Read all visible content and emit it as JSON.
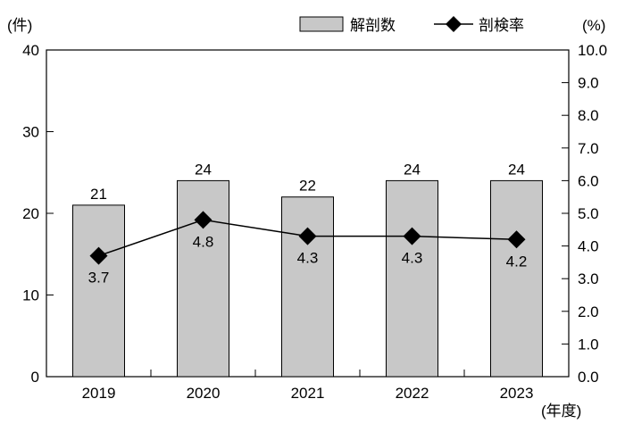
{
  "chart_data": {
    "type": "bar",
    "categories": [
      "2019",
      "2020",
      "2021",
      "2022",
      "2023"
    ],
    "series": [
      {
        "name": "解剖数",
        "type": "bar",
        "axis": "left",
        "values": [
          21,
          24,
          22,
          24,
          24
        ],
        "color": "#c8c8c8"
      },
      {
        "name": "剖検率",
        "type": "line",
        "axis": "right",
        "marker": "diamond",
        "values": [
          3.7,
          4.8,
          4.3,
          4.3,
          4.2
        ],
        "color": "#000000"
      }
    ],
    "value_labels": {
      "bars": [
        "21",
        "24",
        "22",
        "24",
        "24"
      ],
      "line": [
        "3.7",
        "4.8",
        "4.3",
        "4.3",
        "4.2"
      ]
    },
    "left_axis": {
      "unit_label": "(件)",
      "min": 0,
      "max": 40,
      "ticks": [
        "0",
        "10",
        "20",
        "30",
        "40"
      ]
    },
    "right_axis": {
      "unit_label": "(%)",
      "min": 0,
      "max": 10,
      "ticks": [
        "0.0",
        "1.0",
        "2.0",
        "3.0",
        "4.0",
        "5.0",
        "6.0",
        "7.0",
        "8.0",
        "9.0",
        "10.0"
      ]
    },
    "x_unit_label": "(年度)",
    "legend_position": "top-right",
    "grid": false
  }
}
